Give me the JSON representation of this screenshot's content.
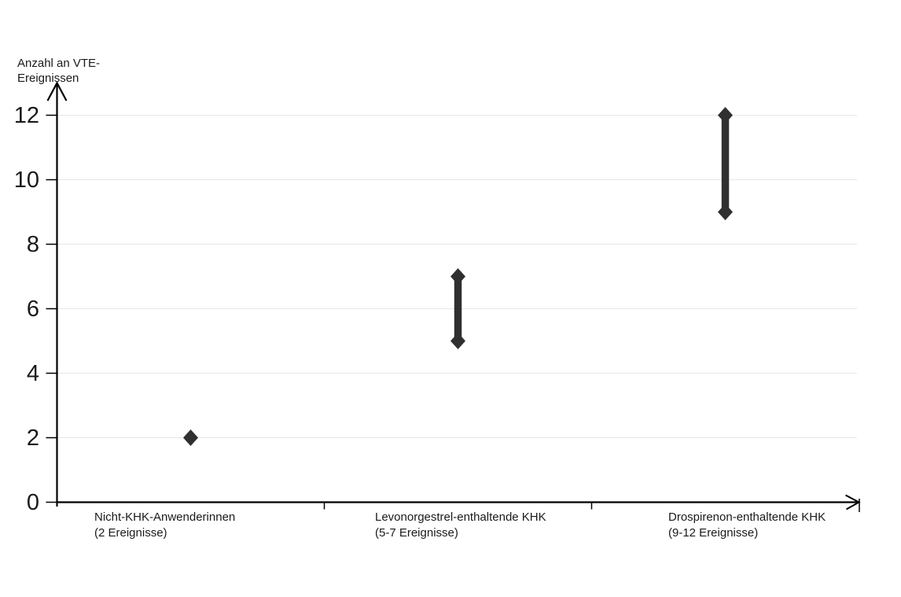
{
  "chart_data": {
    "type": "scatter",
    "subtype": "dumbbell-range",
    "title": "",
    "xlabel": "",
    "ylabel": "Anzahl an VTE-Ereignissen",
    "ylabel_lines": [
      "Anzahl an VTE-",
      "Ereignissen"
    ],
    "ylim": [
      0,
      12
    ],
    "yticks": [
      0,
      2,
      4,
      6,
      8,
      10,
      12
    ],
    "grid": "horizontal",
    "legend_position": "none",
    "marker_shape": "diamond",
    "series": [
      {
        "category_lines": [
          "Nicht-KHK-Anwenderinnen",
          "(2 Ereignisse)"
        ],
        "min": 2,
        "max": 2,
        "values": [
          2
        ]
      },
      {
        "category_lines": [
          "Levonorgestrel-enthaltende KHK",
          "(5-7 Ereignisse)"
        ],
        "min": 5,
        "max": 7,
        "values": [
          5,
          7
        ]
      },
      {
        "category_lines": [
          "Drospirenon-enthaltende KHK",
          "(9-12 Ereignisse)"
        ],
        "min": 9,
        "max": 12,
        "values": [
          9,
          12
        ]
      }
    ],
    "colors": {
      "marker": "#303030",
      "axis": "#000000",
      "gridline": "#e7e7e7",
      "text": "#1a1a1a",
      "background": "#ffffff"
    }
  }
}
